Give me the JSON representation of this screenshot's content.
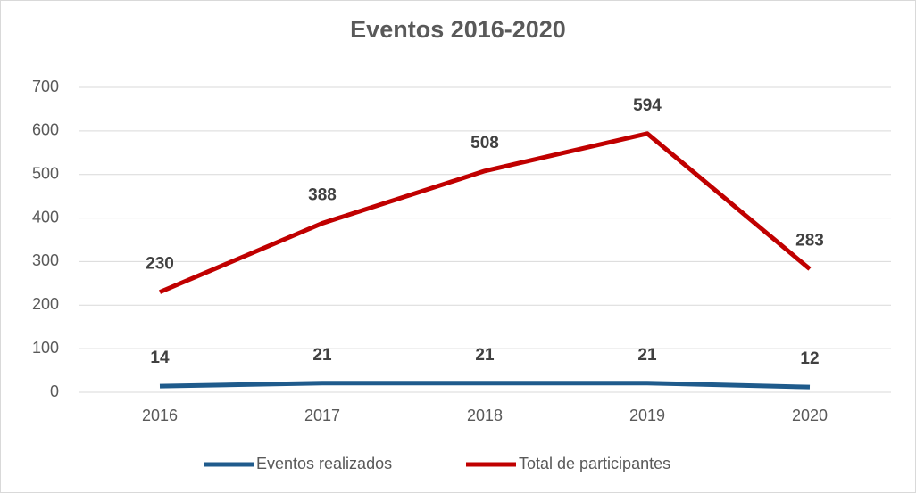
{
  "chart_data": {
    "type": "line",
    "title": "Eventos 2016-2020",
    "categories": [
      "2016",
      "2017",
      "2018",
      "2019",
      "2020"
    ],
    "series": [
      {
        "name": "Eventos realizados",
        "color": "#1f5b8c",
        "values": [
          14,
          21,
          21,
          21,
          12
        ]
      },
      {
        "name": "Total de participantes",
        "color": "#c00000",
        "values": [
          230,
          388,
          508,
          594,
          283
        ]
      }
    ],
    "ylim": [
      0,
      700
    ],
    "yticks": [
      0,
      100,
      200,
      300,
      400,
      500,
      600,
      700
    ],
    "grid": true,
    "legend": "bottom"
  }
}
